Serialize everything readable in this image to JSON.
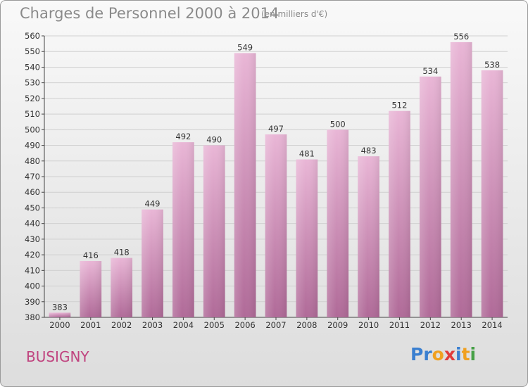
{
  "title": "Charges de Personnel 2000 à 2014",
  "subtitle": "(en milliers d'€)",
  "commune": "BUSIGNY",
  "logo": {
    "text": "Proxiti",
    "letters": [
      {
        "ch": "P",
        "color": "#3a7fd0"
      },
      {
        "ch": "r",
        "color": "#3a7fd0"
      },
      {
        "ch": "o",
        "color": "#f0a020"
      },
      {
        "ch": "x",
        "color": "#e03a3a"
      },
      {
        "ch": "i",
        "color": "#3a7fd0"
      },
      {
        "ch": "t",
        "color": "#f0a020"
      },
      {
        "ch": "i",
        "color": "#46a046"
      }
    ]
  },
  "colors": {
    "bar_top": "#e9b6d6",
    "bar_bottom": "#b06a98",
    "commune": "#c0447f",
    "axis": "#444444"
  },
  "chart_data": {
    "type": "bar",
    "categories": [
      "2000",
      "2001",
      "2002",
      "2003",
      "2004",
      "2005",
      "2006",
      "2007",
      "2008",
      "2009",
      "2010",
      "2011",
      "2012",
      "2013",
      "2014"
    ],
    "values": [
      383,
      416,
      418,
      449,
      492,
      490,
      549,
      497,
      481,
      500,
      483,
      512,
      534,
      556,
      538
    ],
    "data_labels": [
      "383",
      "416",
      "418",
      "449",
      "492",
      "490",
      "549",
      "497",
      "481",
      "500",
      "483",
      "512",
      "534",
      "556",
      "538"
    ],
    "ylim": [
      380,
      560
    ],
    "yticks": [
      380,
      390,
      400,
      410,
      420,
      430,
      440,
      450,
      460,
      470,
      480,
      490,
      500,
      510,
      520,
      530,
      540,
      550,
      560
    ],
    "grid": true
  }
}
